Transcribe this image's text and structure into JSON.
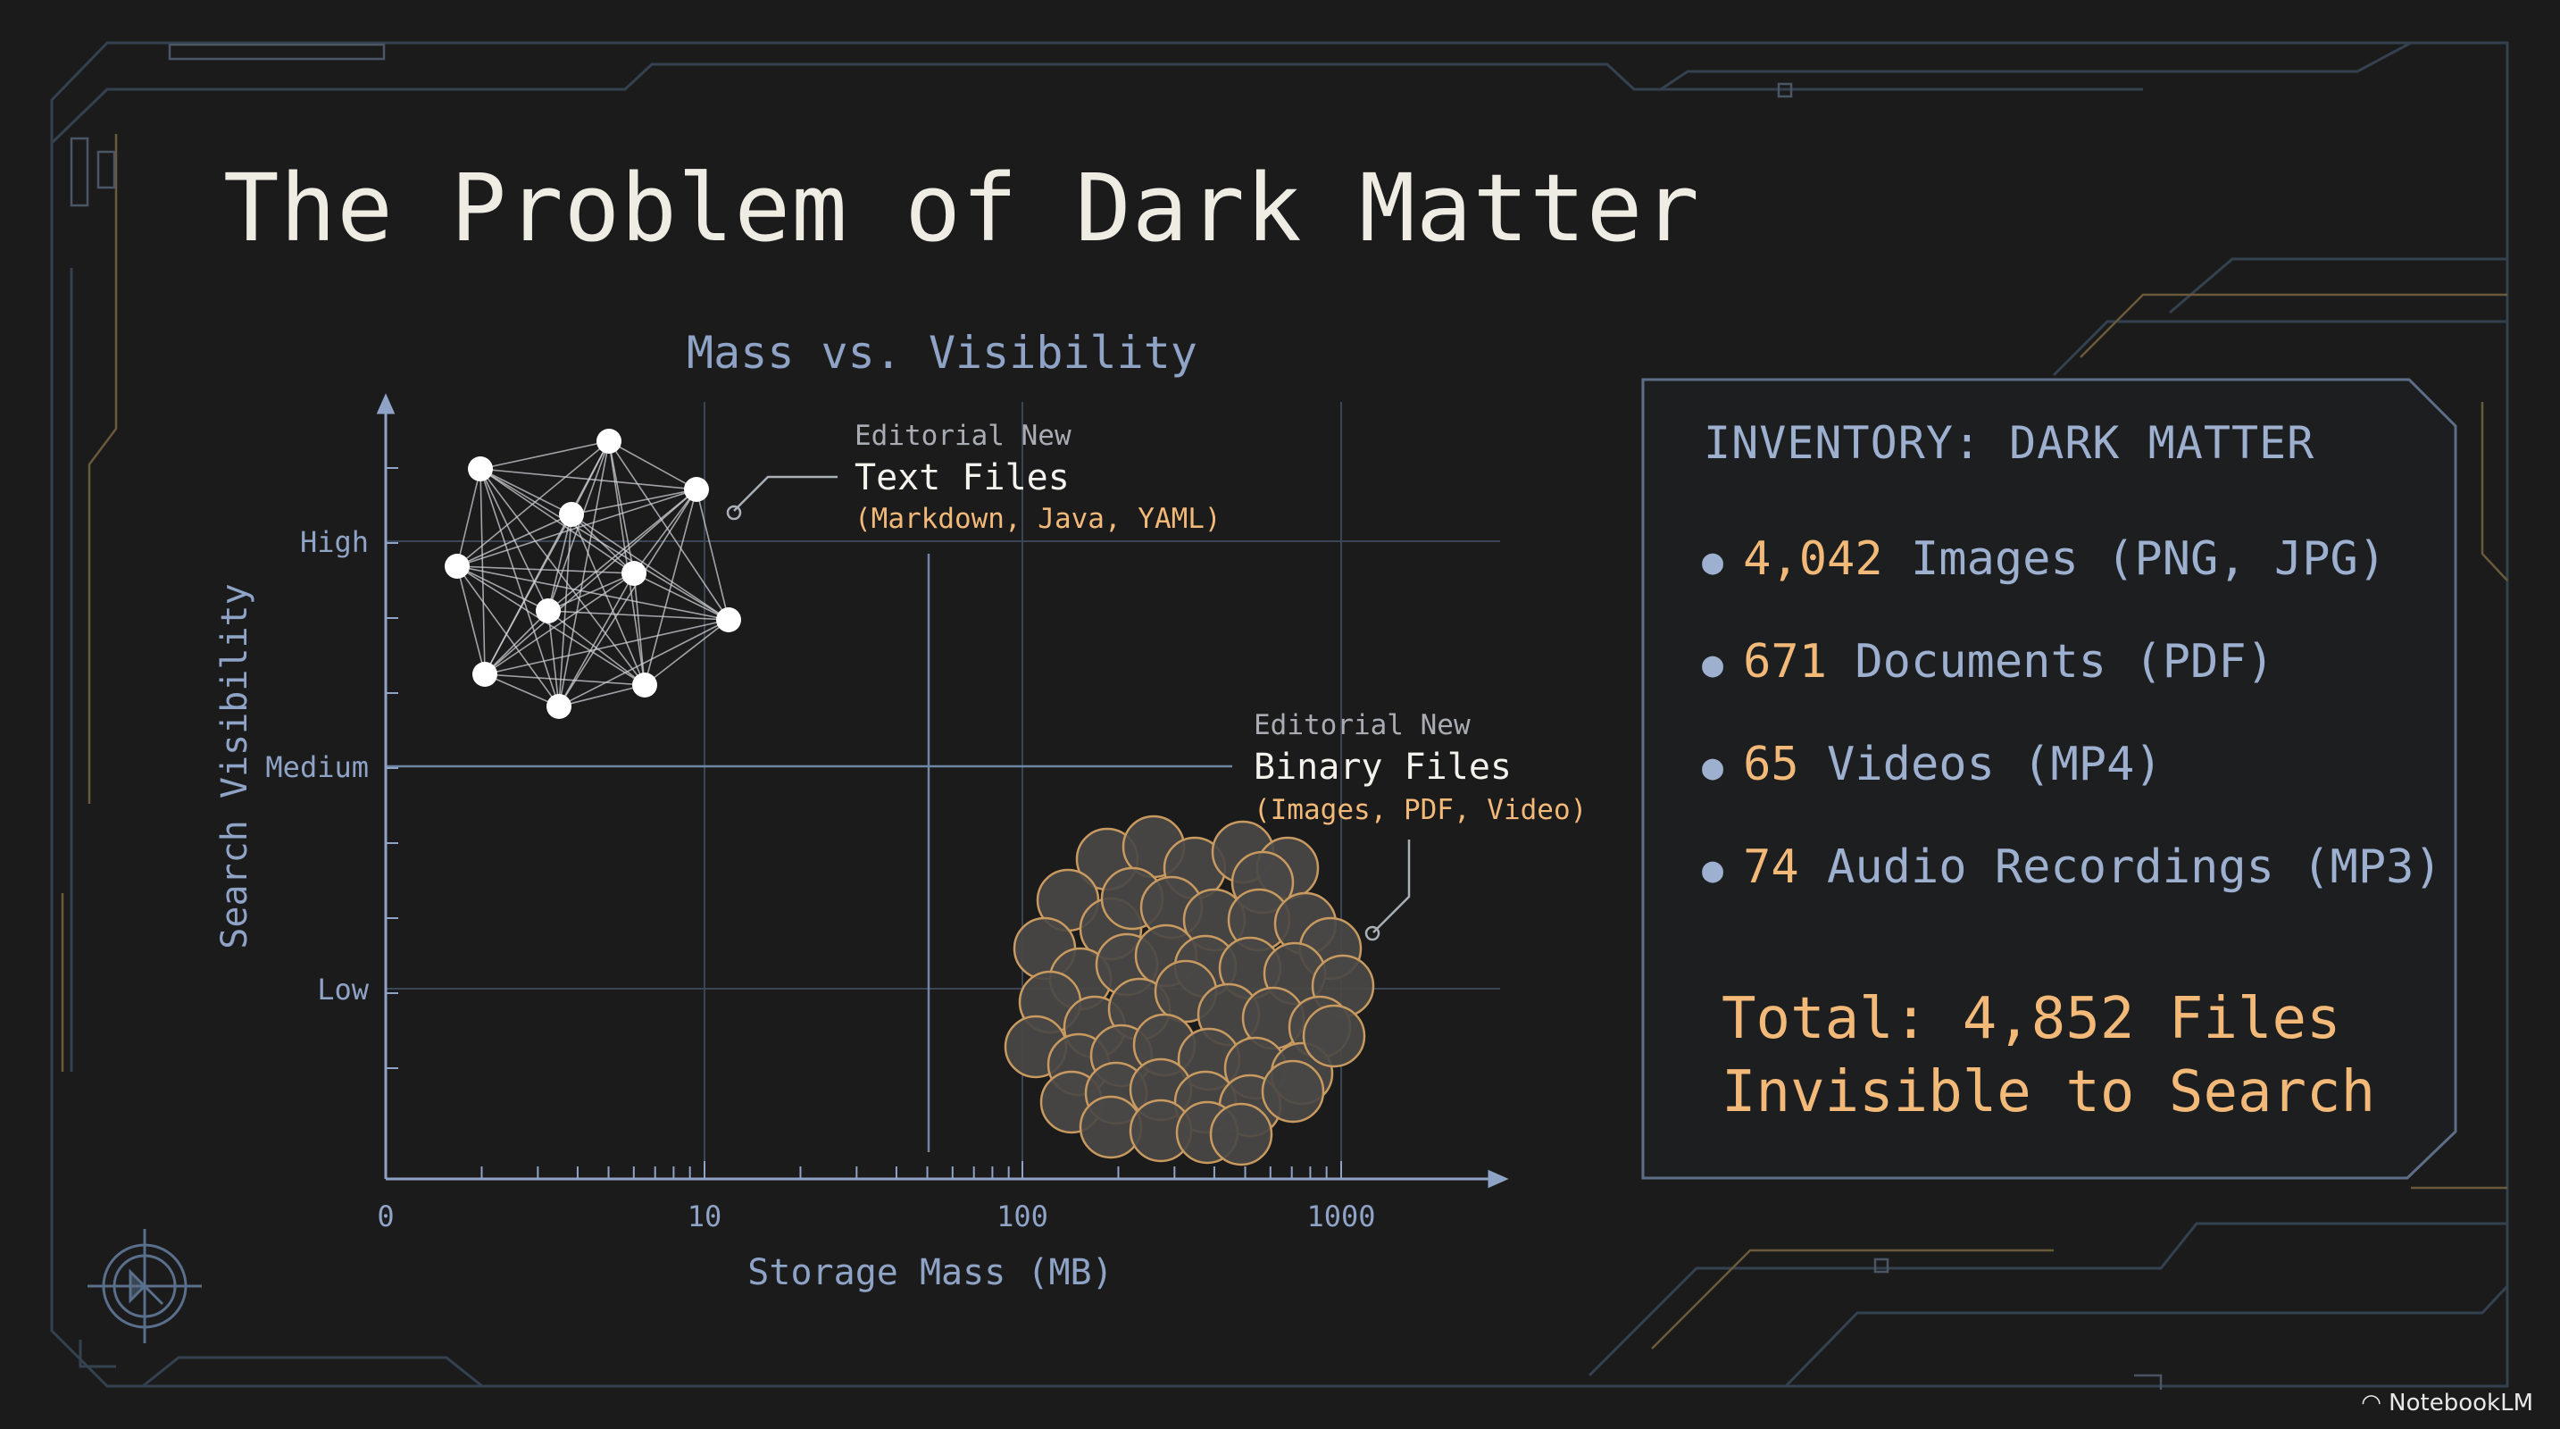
{
  "slide": {
    "title": "The Problem of Dark Matter",
    "watermark": "NotebookLM"
  },
  "colors": {
    "background": "#1b1b1c",
    "title": "#efece4",
    "axis": "#8ea3c6",
    "accent": "#f2b978",
    "frame": "#3b4a5c",
    "node": "#ffffff",
    "cluster_fill": "#4a4845",
    "cluster_stroke": "#c89a60"
  },
  "chart_data": {
    "type": "scatter",
    "title": "Mass vs. Visibility",
    "xlabel": "Storage Mass (MB)",
    "ylabel": "Search Visibility",
    "x_scale": "log",
    "x_ticks": [
      "0",
      "10",
      "100",
      "1000"
    ],
    "y_ticks": [
      "High",
      "Medium",
      "Low"
    ],
    "annotations": [
      {
        "kicker": "Editorial New",
        "name": "Text Files",
        "detail": "(Markdown, Java, YAML)",
        "storage_mass": "low",
        "search_visibility": "High"
      },
      {
        "kicker": "Editorial New",
        "name": "Binary Files",
        "detail": "(Images, PDF, Video)",
        "storage_mass": "high",
        "search_visibility": "Low"
      }
    ]
  },
  "inventory": {
    "heading": "INVENTORY: DARK MATTER",
    "items": [
      {
        "count": "4,042",
        "label": "Images (PNG, JPG)"
      },
      {
        "count": "671",
        "label": "Documents (PDF)"
      },
      {
        "count": "65",
        "label": "Videos (MP4)"
      },
      {
        "count": "74",
        "label": "Audio Recordings (MP3)"
      }
    ],
    "total_line1": "Total: 4,852 Files",
    "total_line2": "Invisible to Search"
  }
}
